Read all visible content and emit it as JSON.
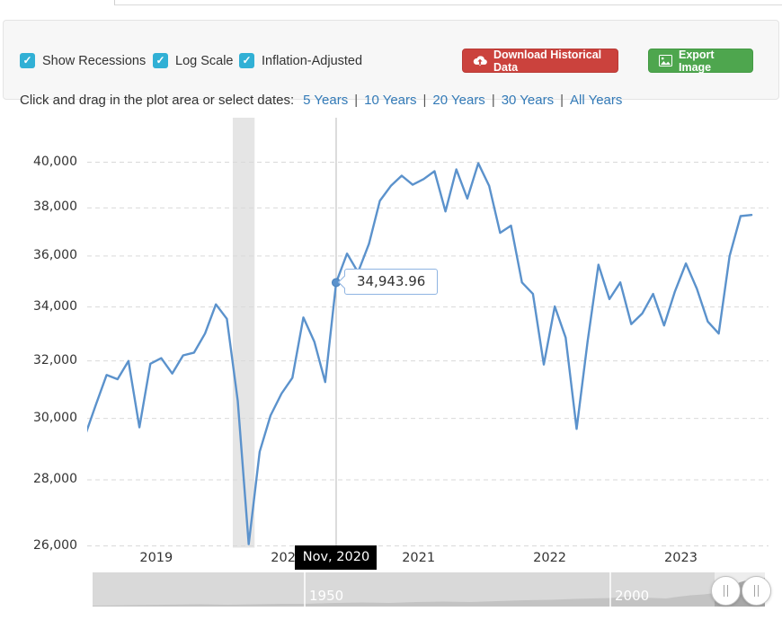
{
  "toolbar": {
    "checkboxes": [
      {
        "label": "Show Recessions",
        "checked": true
      },
      {
        "label": "Log Scale",
        "checked": true
      },
      {
        "label": "Inflation-Adjusted",
        "checked": true
      }
    ],
    "check_glyph": "✓",
    "download_button": "Download Historical Data",
    "export_button": "Export Image"
  },
  "range_selector": {
    "prompt": "Click and drag in the plot area or select dates:",
    "separator": "|",
    "options": [
      "5 Years",
      "10 Years",
      "20 Years",
      "30 Years",
      "All Years"
    ]
  },
  "chart_data": {
    "type": "line",
    "y_scale": "log",
    "grid": true,
    "y_ticks": [
      40000,
      38000,
      36000,
      34000,
      32000,
      30000,
      28000,
      26000
    ],
    "y_tick_labels": [
      "40,000",
      "38,000",
      "36,000",
      "34,000",
      "32,000",
      "30,000",
      "28,000",
      "26,000"
    ],
    "ylim": [
      25500,
      41500
    ],
    "x_tick_labels": [
      "2019",
      "2020",
      "2021",
      "2022",
      "2023"
    ],
    "months": [
      "2018-12",
      "2019-01",
      "2019-02",
      "2019-03",
      "2019-04",
      "2019-05",
      "2019-06",
      "2019-07",
      "2019-08",
      "2019-09",
      "2019-10",
      "2019-11",
      "2019-12",
      "2020-01",
      "2020-02",
      "2020-03",
      "2020-04",
      "2020-05",
      "2020-06",
      "2020-07",
      "2020-08",
      "2020-09",
      "2020-10",
      "2020-11",
      "2020-12",
      "2021-01",
      "2021-02",
      "2021-03",
      "2021-04",
      "2021-05",
      "2021-06",
      "2021-07",
      "2021-08",
      "2021-09",
      "2021-10",
      "2021-11",
      "2021-12",
      "2022-01",
      "2022-02",
      "2022-03",
      "2022-04",
      "2022-05",
      "2022-06",
      "2022-07",
      "2022-08",
      "2022-09",
      "2022-10",
      "2022-11",
      "2022-12",
      "2023-01",
      "2023-02",
      "2023-03",
      "2023-04",
      "2023-05",
      "2023-06",
      "2023-07",
      "2023-08",
      "2023-09",
      "2023-10",
      "2023-11",
      "2023-12",
      "2024-01"
    ],
    "values": [
      29400,
      30450,
      31500,
      31350,
      32000,
      29700,
      31900,
      32100,
      31550,
      32200,
      32300,
      33000,
      34100,
      33550,
      30600,
      26050,
      28900,
      30100,
      30850,
      31400,
      33600,
      32700,
      31250,
      34943.96,
      36100,
      35350,
      36500,
      38300,
      38950,
      39400,
      39000,
      39250,
      39600,
      37850,
      39680,
      38400,
      39950,
      38950,
      36950,
      37250,
      34950,
      34500,
      31870,
      34020,
      32850,
      29650,
      32700,
      35650,
      34300,
      34950,
      33350,
      33750,
      34500,
      33300,
      34600,
      35700,
      34700,
      33450,
      33000,
      36000,
      37650,
      37700
    ],
    "recession_band": {
      "start": "2020-02-01",
      "end": "2020-04-01"
    },
    "tooltip": {
      "month": "2020-11",
      "value_label": "34,943.96",
      "date_label": "Nov, 2020"
    },
    "colors": {
      "line": "#5b92cc",
      "grid": "#d9d9d9",
      "band": "#e5e5e5",
      "crosshair": "#b8b8b8",
      "marker": "#5b92cc",
      "marker_edge": "#4a82bc"
    }
  },
  "navigator": {
    "year_labels": [
      "1950",
      "2000"
    ],
    "handle_glyph": "||",
    "profile": [
      [
        0,
        1
      ],
      [
        40,
        1.5
      ],
      [
        80,
        2
      ],
      [
        120,
        2.5
      ],
      [
        150,
        2
      ],
      [
        180,
        2.5
      ],
      [
        210,
        3
      ],
      [
        236,
        3
      ],
      [
        270,
        4
      ],
      [
        300,
        4.5
      ],
      [
        330,
        4
      ],
      [
        360,
        5
      ],
      [
        390,
        5.5
      ],
      [
        420,
        5
      ],
      [
        450,
        6
      ],
      [
        480,
        7
      ],
      [
        510,
        7.5
      ],
      [
        535,
        8.5
      ],
      [
        555,
        9
      ],
      [
        576,
        9.5
      ],
      [
        595,
        11
      ],
      [
        610,
        10
      ],
      [
        625,
        9.5
      ],
      [
        638,
        9
      ],
      [
        652,
        11
      ],
      [
        665,
        12.5
      ],
      [
        680,
        13.5
      ],
      [
        692,
        15
      ],
      [
        703,
        18
      ],
      [
        713,
        23
      ],
      [
        720,
        27
      ],
      [
        727,
        29
      ],
      [
        734,
        31
      ],
      [
        740,
        30
      ],
      [
        744,
        31
      ],
      [
        748,
        32
      ]
    ]
  }
}
